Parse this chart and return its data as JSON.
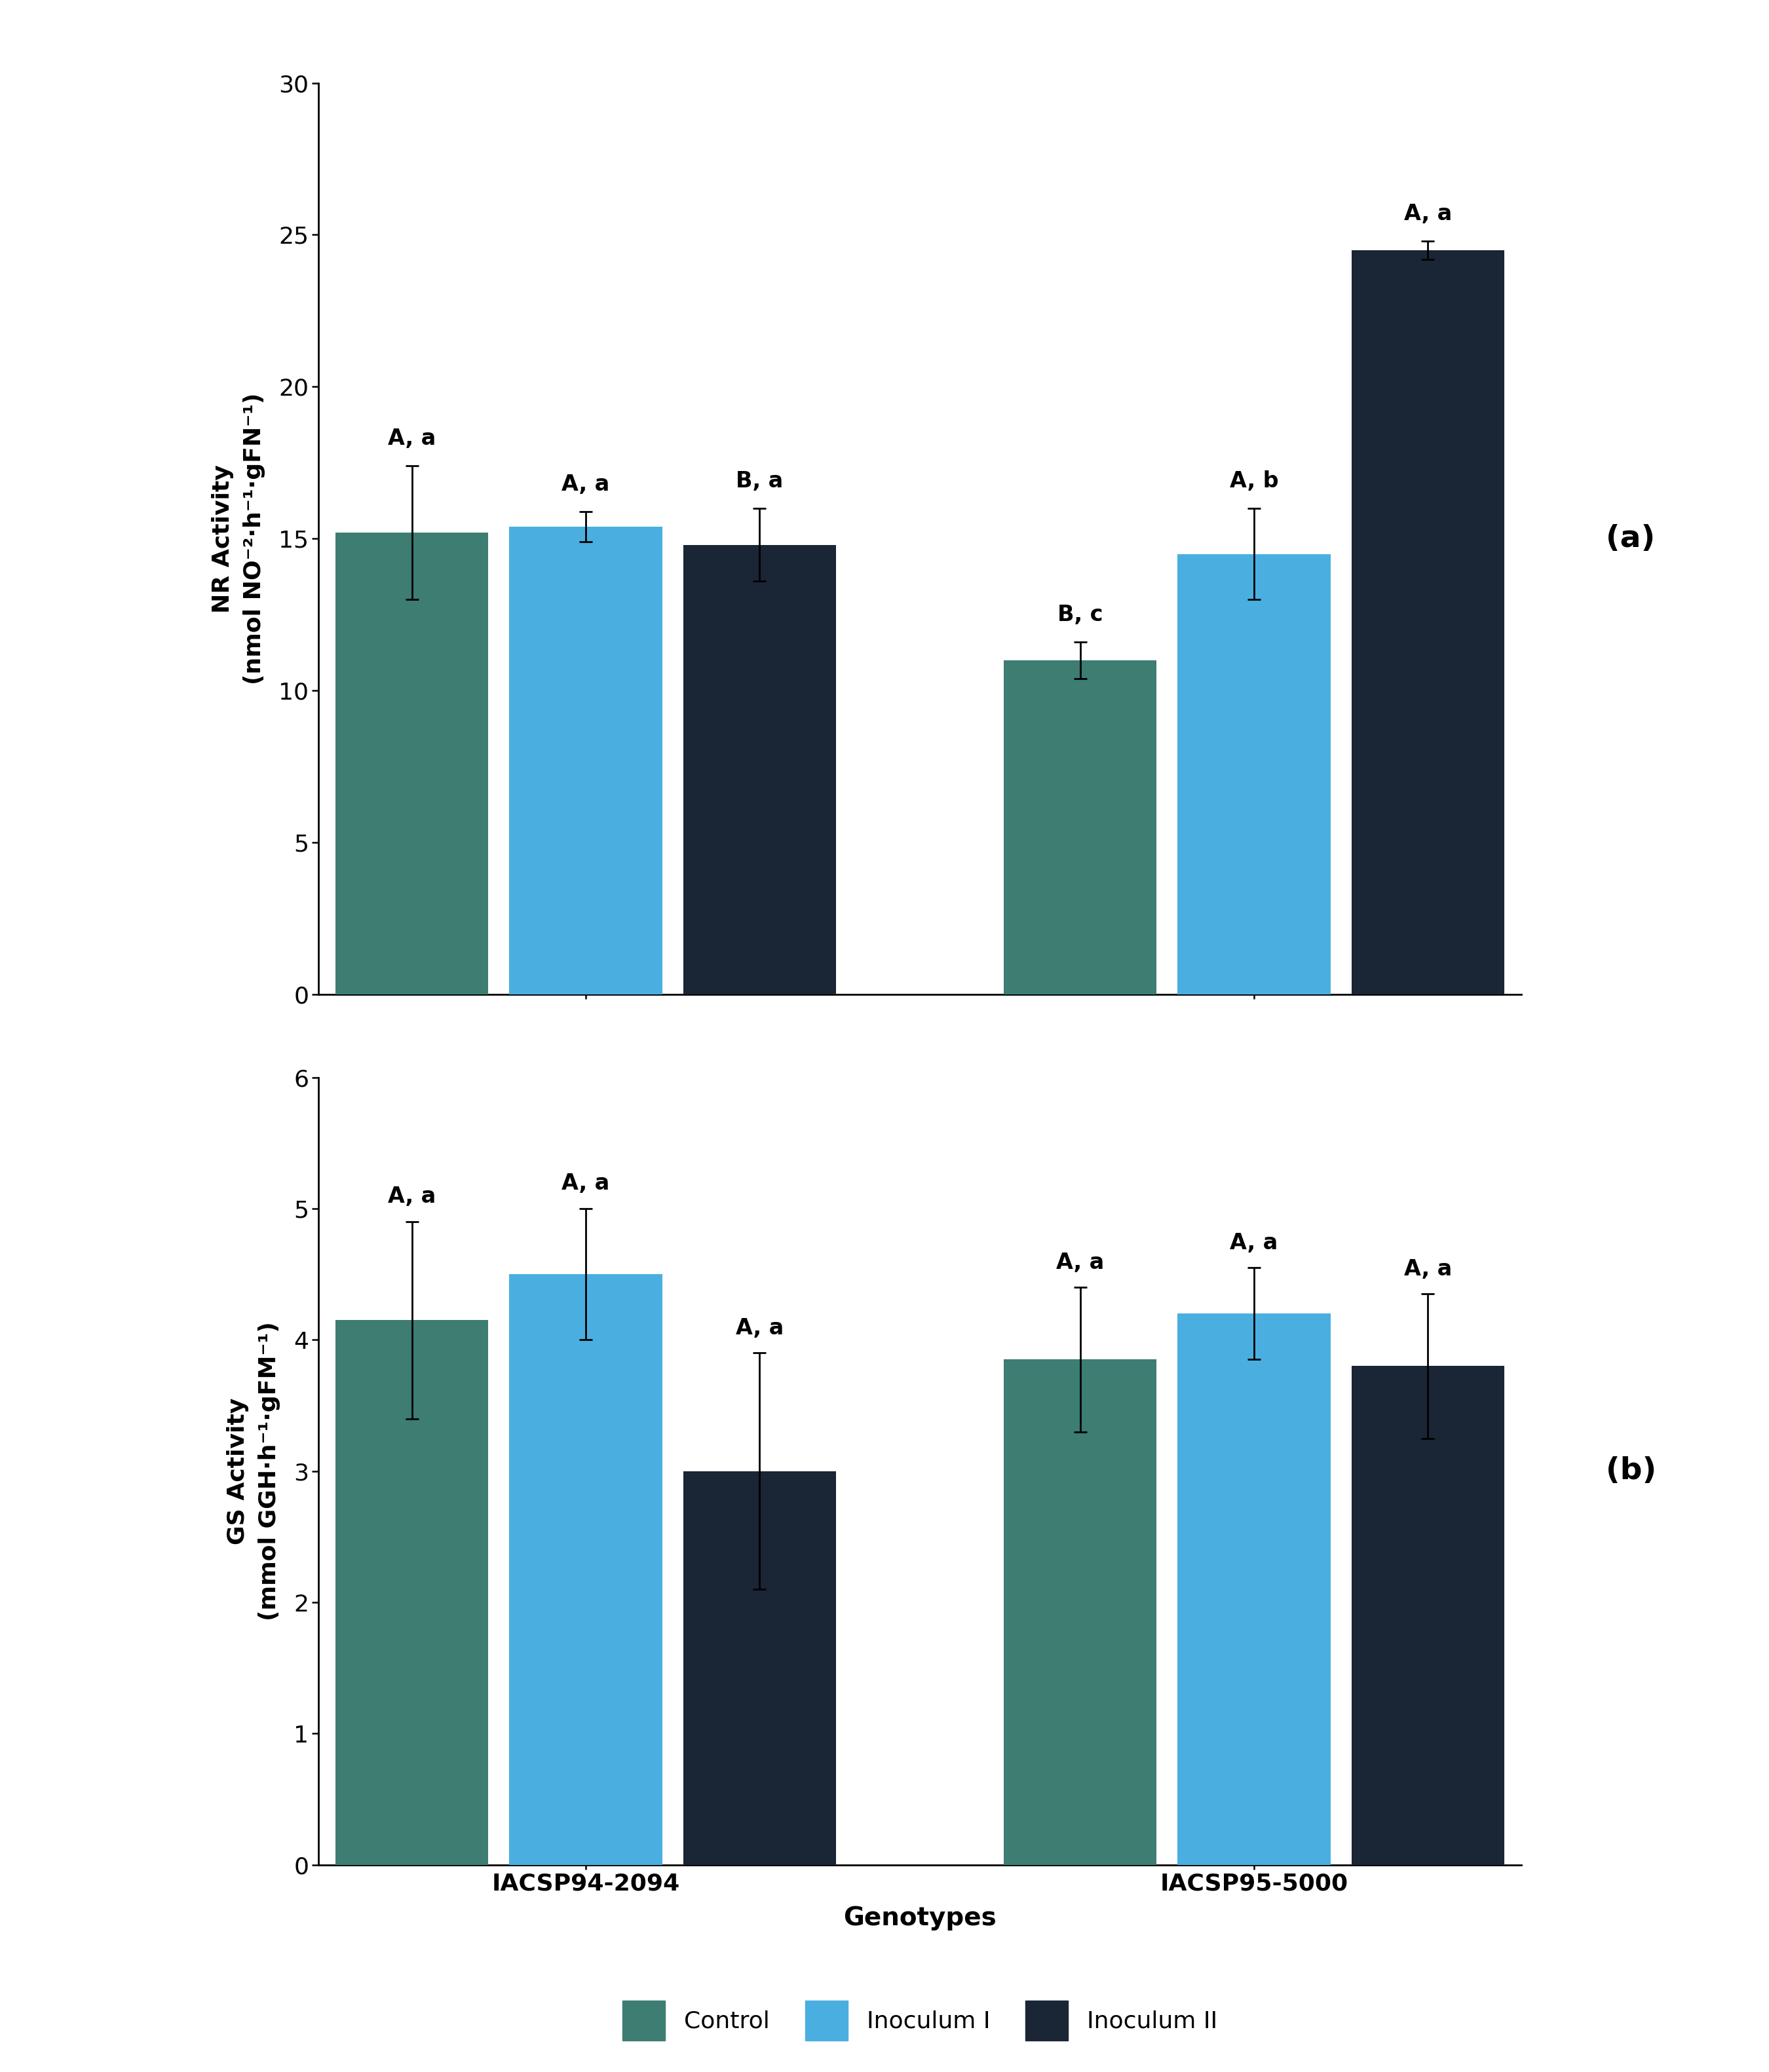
{
  "panel_a": {
    "title": "(a)",
    "ylabel": "NR Activity\n(nmol NO⁻²·h⁻¹·gFN⁻¹)",
    "ylim": [
      0,
      30
    ],
    "yticks": [
      0,
      5,
      10,
      15,
      20,
      25,
      30
    ],
    "groups": [
      "IACSP94-2094",
      "IACSP95-5000"
    ],
    "bars": {
      "Control": [
        15.2,
        11.0
      ],
      "Inoculum I": [
        15.4,
        14.5
      ],
      "Inoculum II": [
        14.8,
        24.5
      ]
    },
    "errors": {
      "Control": [
        2.2,
        0.6
      ],
      "Inoculum I": [
        0.5,
        1.5
      ],
      "Inoculum II": [
        1.2,
        0.3
      ]
    },
    "labels": {
      "Control": [
        "A, a",
        "B, c"
      ],
      "Inoculum I": [
        "A, a",
        "A, b"
      ],
      "Inoculum II": [
        "B, a",
        "A, a"
      ]
    }
  },
  "panel_b": {
    "title": "(b)",
    "ylabel": "GS Activity\n(mmol GGH·h⁻¹·gFM⁻¹)",
    "ylim": [
      0,
      6
    ],
    "yticks": [
      0,
      1,
      2,
      3,
      4,
      5,
      6
    ],
    "groups": [
      "IACSP94-2094",
      "IACSP95-5000"
    ],
    "bars": {
      "Control": [
        4.15,
        3.85
      ],
      "Inoculum I": [
        4.5,
        4.2
      ],
      "Inoculum II": [
        3.0,
        3.8
      ]
    },
    "errors": {
      "Control": [
        0.75,
        0.55
      ],
      "Inoculum I": [
        0.5,
        0.35
      ],
      "Inoculum II": [
        0.9,
        0.55
      ]
    },
    "labels": {
      "Control": [
        "A, a",
        "A, a"
      ],
      "Inoculum I": [
        "A, a",
        "A, a"
      ],
      "Inoculum II": [
        "A, a",
        "A, a"
      ]
    }
  },
  "xlabel": "Genotypes",
  "colors": {
    "Control": "#3d7d72",
    "Inoculum I": "#4aafe0",
    "Inoculum II": "#1a2535"
  },
  "legend_labels": [
    "Control",
    "Inoculum I",
    "Inoculum II"
  ],
  "background_color": "#ffffff",
  "tick_fontsize": 26,
  "ylabel_fontsize": 26,
  "xlabel_fontsize": 28,
  "annot_fontsize": 24,
  "legend_fontsize": 26,
  "panel_label_fontsize": 34,
  "xtick_fontsize": 26
}
